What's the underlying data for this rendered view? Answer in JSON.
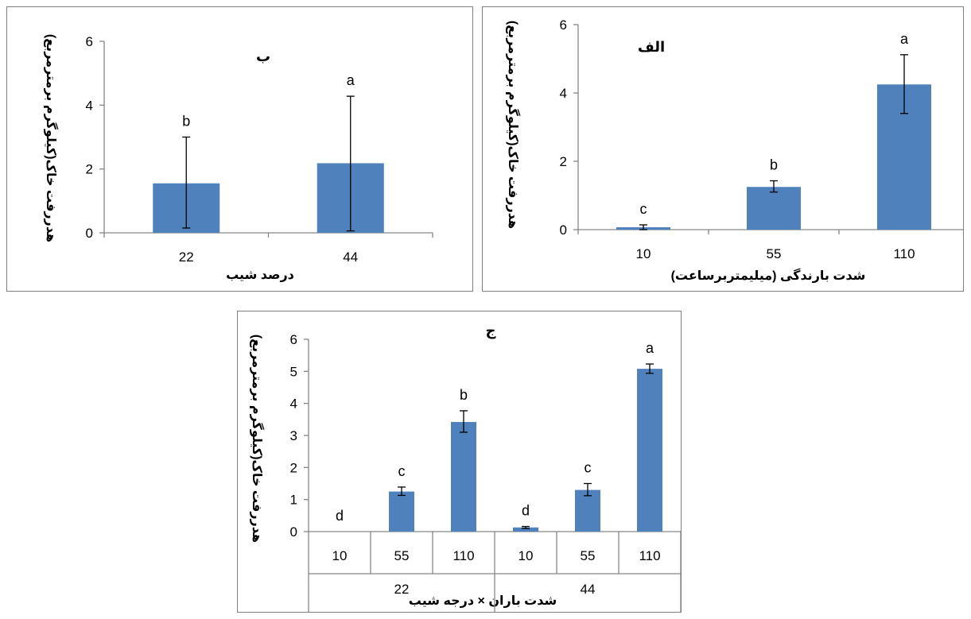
{
  "colors": {
    "bar": "#4f81bd",
    "axis": "#868686",
    "error_bar": "#000000",
    "frame": "#7f7f7f"
  },
  "chart_data": [
    {
      "id": "panel-b",
      "type": "bar",
      "title": "ب",
      "xlabel": "درصد شیب",
      "ylabel": "هدررفت خاک(کیلوگرم برمترمربع)",
      "categories": [
        "22",
        "44"
      ],
      "values": [
        1.55,
        2.18
      ],
      "error_plus": [
        1.45,
        2.1
      ],
      "error_minus": [
        1.4,
        2.12
      ],
      "letters": [
        "b",
        "a"
      ],
      "ylim": [
        0,
        6
      ],
      "yticks": [
        "0",
        "2",
        "4",
        "6"
      ],
      "grid": false
    },
    {
      "id": "panel-alef",
      "type": "bar",
      "title": "الف",
      "xlabel": "شدت بارندگی (میلیمتربرساعت)",
      "ylabel": "هدررفت خاک(کیلوگرم برمترمربع)",
      "categories": [
        "10",
        "55",
        "110"
      ],
      "values": [
        0.07,
        1.25,
        4.25
      ],
      "error_plus": [
        0.07,
        0.18,
        0.87
      ],
      "error_minus": [
        0.07,
        0.15,
        0.85
      ],
      "letters": [
        "c",
        "b",
        "a"
      ],
      "ylim": [
        0,
        6
      ],
      "yticks": [
        "0",
        "2",
        "4",
        "6"
      ],
      "grid": false
    },
    {
      "id": "panel-j",
      "type": "bar",
      "title": "ج",
      "xlabel": "شدت باران × درجه شیب",
      "ylabel": "هدررفت خاک(کیلوگرم برمترمربع)",
      "categories": [
        "10",
        "55",
        "110",
        "10",
        "55",
        "110"
      ],
      "groups": [
        "22",
        "44"
      ],
      "values": [
        0,
        1.25,
        3.42,
        0.13,
        1.3,
        5.08
      ],
      "error_plus": [
        0,
        0.14,
        0.35,
        0.03,
        0.2,
        0.15
      ],
      "error_minus": [
        0,
        0.12,
        0.32,
        0.03,
        0.18,
        0.14
      ],
      "letters": [
        "d",
        "c",
        "b",
        "d",
        "c",
        "a"
      ],
      "ylim": [
        0,
        6
      ],
      "yticks": [
        "0",
        "1",
        "2",
        "3",
        "4",
        "5",
        "6"
      ],
      "grid": false
    }
  ]
}
